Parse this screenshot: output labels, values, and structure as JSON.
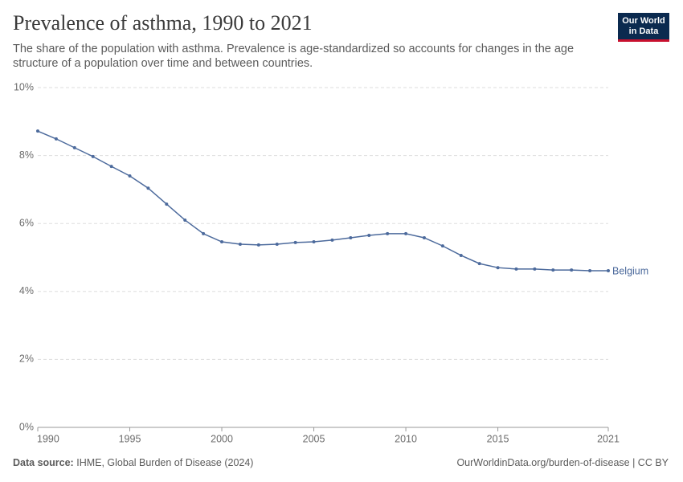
{
  "chart_data": {
    "type": "line",
    "title": "Prevalence of asthma, 1990 to 2021",
    "subtitle": "The share of the population with asthma. Prevalence is age-standardized so accounts for changes in the age structure of a population over time and between countries.",
    "logo": [
      "Our World",
      "in Data"
    ],
    "source_label": "Data source:",
    "source": "IHME, Global Burden of Disease (2024)",
    "credit": "OurWorldinData.org/burden-of-disease | CC BY",
    "x": [
      1990,
      1991,
      1992,
      1993,
      1994,
      1995,
      1996,
      1997,
      1998,
      1999,
      2000,
      2001,
      2002,
      2003,
      2004,
      2005,
      2006,
      2007,
      2008,
      2009,
      2010,
      2011,
      2012,
      2013,
      2014,
      2015,
      2016,
      2017,
      2018,
      2019,
      2020,
      2021
    ],
    "series": [
      {
        "name": "Belgium",
        "color": "#4c6a9c",
        "values": [
          8.72,
          8.49,
          8.23,
          7.97,
          7.68,
          7.4,
          7.04,
          6.57,
          6.1,
          5.7,
          5.46,
          5.39,
          5.37,
          5.39,
          5.44,
          5.46,
          5.51,
          5.58,
          5.65,
          5.7,
          5.7,
          5.58,
          5.34,
          5.06,
          4.82,
          4.7,
          4.66,
          4.66,
          4.63,
          4.63,
          4.61,
          4.61
        ]
      }
    ],
    "xlim": [
      1990,
      2021
    ],
    "xticks": [
      1990,
      1995,
      2000,
      2005,
      2010,
      2015,
      2021
    ],
    "ylim": [
      0,
      10
    ],
    "yticks": [
      {
        "value": 0,
        "label": "0%"
      },
      {
        "value": 2,
        "label": "2%"
      },
      {
        "value": 4,
        "label": "4%"
      },
      {
        "value": 6,
        "label": "6%"
      },
      {
        "value": 8,
        "label": "8%"
      },
      {
        "value": 10,
        "label": "10%"
      }
    ],
    "grid": true
  }
}
